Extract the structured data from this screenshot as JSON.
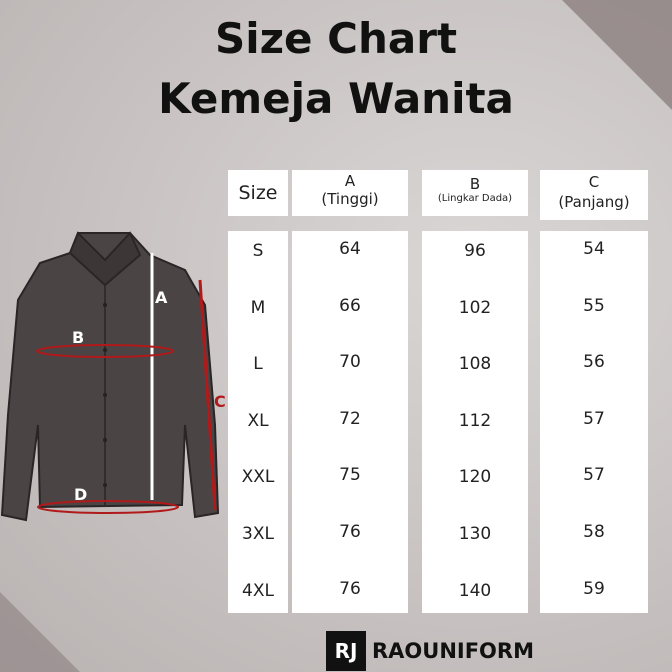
{
  "title": {
    "line1": "Size Chart",
    "line2": "Kemeja Wanita"
  },
  "headers": {
    "size": "Size",
    "a_letter": "A",
    "a_label": "(Tinggi)",
    "b_letter": "B",
    "b_label": "(Lingkar Dada)",
    "c_letter": "C",
    "c_label": "(Panjang)"
  },
  "rows": [
    {
      "size": "S",
      "a": "64",
      "b": "96",
      "c": "54"
    },
    {
      "size": "M",
      "a": "66",
      "b": "102",
      "c": "55"
    },
    {
      "size": "L",
      "a": "70",
      "b": "108",
      "c": "56"
    },
    {
      "size": "XL",
      "a": "72",
      "b": "112",
      "c": "57"
    },
    {
      "size": "XXL",
      "a": "75",
      "b": "120",
      "c": "57"
    },
    {
      "size": "3XL",
      "a": "76",
      "b": "130",
      "c": "58"
    },
    {
      "size": "4XL",
      "a": "76",
      "b": "140",
      "c": "59"
    }
  ],
  "diagram_labels": {
    "a": "A",
    "b": "B",
    "c": "C",
    "d": "D"
  },
  "brand": {
    "mark": "RJ",
    "name": "RAOUNIFORM"
  },
  "colors": {
    "shirt": "#4a4445",
    "measure": "#b01a1a",
    "dot": "#3aa0d8"
  }
}
